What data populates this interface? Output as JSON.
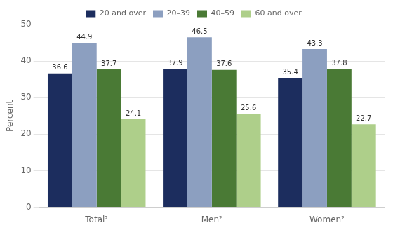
{
  "chart_data": {
    "type": "bar",
    "categories": [
      "Total²",
      "Men²",
      "Women²"
    ],
    "series": [
      {
        "name": "20 and over",
        "color": "#1c2d5e",
        "values": [
          36.6,
          37.9,
          35.4
        ]
      },
      {
        "name": "20–39",
        "color": "#8c9fc0",
        "values": [
          44.9,
          46.5,
          43.3
        ]
      },
      {
        "name": "40–59",
        "color": "#4a7a35",
        "values": [
          37.7,
          37.6,
          37.8
        ]
      },
      {
        "name": "60 and over",
        "color": "#aecf8a",
        "values": [
          24.1,
          25.6,
          22.7
        ]
      }
    ],
    "ylabel": "Percent",
    "ylim": [
      0,
      50
    ],
    "yticks": [
      0,
      10,
      20,
      30,
      40,
      50
    ],
    "grid": true,
    "legend": "top",
    "data_labels": true
  }
}
